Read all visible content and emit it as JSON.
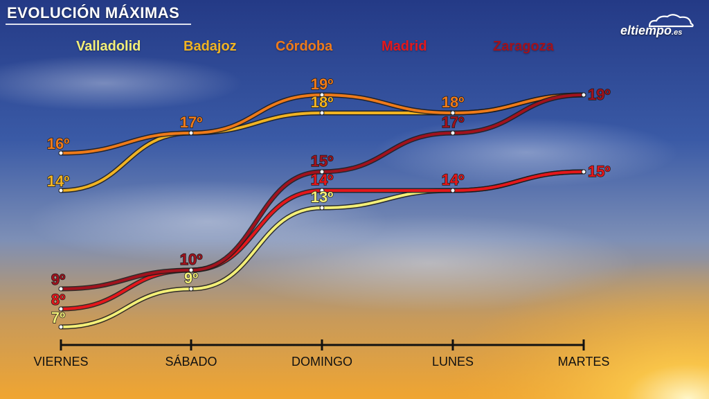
{
  "title": "EVOLUCIÓN MÁXIMAS",
  "brand": {
    "name": "eltiempo",
    "suffix": ".es"
  },
  "chart_data": {
    "type": "line",
    "title": "EVOLUCIÓN MÁXIMAS",
    "categories": [
      "VIERNES",
      "SÁBADO",
      "DOMINGO",
      "LUNES",
      "MARTES"
    ],
    "unit": "º",
    "series": [
      {
        "name": "Valladolid",
        "color": "#f3ef78",
        "values": [
          7,
          9,
          13,
          14,
          15
        ]
      },
      {
        "name": "Badajoz",
        "color": "#f0b323",
        "values": [
          14,
          17,
          18,
          18,
          19
        ]
      },
      {
        "name": "Córdoba",
        "color": "#ee7a1a",
        "values": [
          16,
          17,
          19,
          18,
          19
        ]
      },
      {
        "name": "Madrid",
        "color": "#e4171b",
        "values": [
          8,
          10,
          14,
          14,
          15
        ]
      },
      {
        "name": "Zaragoza",
        "color": "#a1121d",
        "values": [
          9,
          10,
          15,
          17,
          19
        ]
      }
    ],
    "data_labels": [
      {
        "text": "7º",
        "series": "Valladolid",
        "category": "VIERNES"
      },
      {
        "text": "9º",
        "series": "Valladolid",
        "category": "SÁBADO"
      },
      {
        "text": "13º",
        "series": "Valladolid",
        "category": "DOMINGO"
      },
      {
        "text": "14º",
        "series": "Badajoz",
        "category": "VIERNES"
      },
      {
        "text": "18º",
        "series": "Badajoz",
        "category": "DOMINGO"
      },
      {
        "text": "16º",
        "series": "Córdoba",
        "category": "VIERNES"
      },
      {
        "text": "17º",
        "series": "Córdoba",
        "category": "SÁBADO"
      },
      {
        "text": "19º",
        "series": "Córdoba",
        "category": "DOMINGO"
      },
      {
        "text": "18º",
        "series": "Córdoba",
        "category": "LUNES"
      },
      {
        "text": "8º",
        "series": "Madrid",
        "category": "VIERNES"
      },
      {
        "text": "14º",
        "series": "Madrid",
        "category": "DOMINGO"
      },
      {
        "text": "14º",
        "series": "Madrid",
        "category": "LUNES"
      },
      {
        "text": "15º",
        "series": "Madrid",
        "category": "MARTES"
      },
      {
        "text": "9º",
        "series": "Zaragoza",
        "category": "VIERNES"
      },
      {
        "text": "10º",
        "series": "Zaragoza",
        "category": "SÁBADO"
      },
      {
        "text": "15º",
        "series": "Zaragoza",
        "category": "DOMINGO"
      },
      {
        "text": "17º",
        "series": "Zaragoza",
        "category": "LUNES"
      },
      {
        "text": "19º",
        "series": "Zaragoza",
        "category": "MARTES"
      }
    ],
    "legend": "top",
    "grid": false
  }
}
